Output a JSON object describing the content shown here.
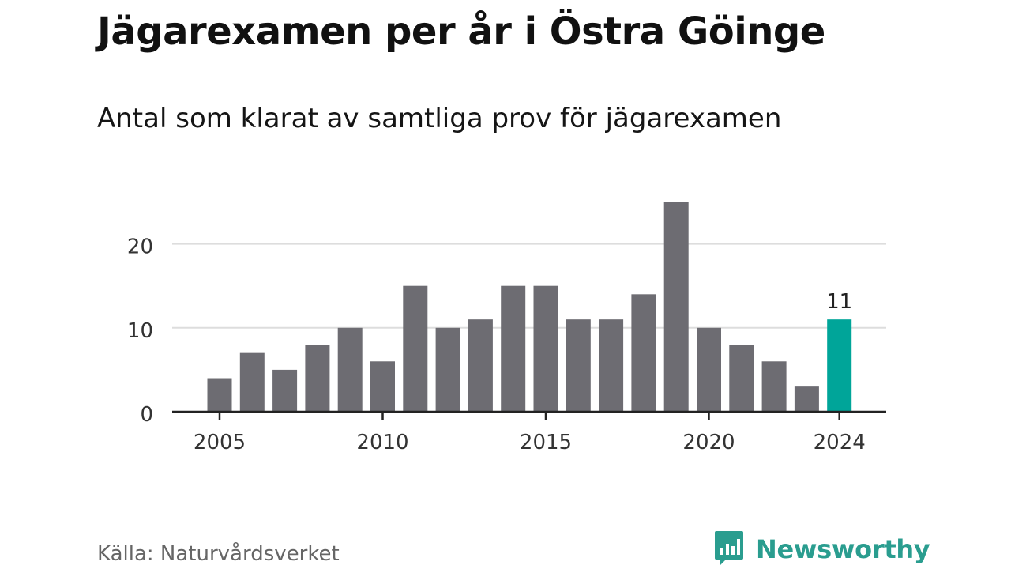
{
  "header": {
    "title": "Jägarexamen per år i Östra Göinge",
    "subtitle": "Antal som klarat av samtliga prov för jägarexamen"
  },
  "footer": {
    "source": "Källa: Naturvårdsverket",
    "brand": "Newsworthy",
    "brand_icon": "bar-chart-speech-bubble-icon"
  },
  "colors": {
    "bar": "#6d6c72",
    "highlight": "#00a599",
    "grid": "#dddddd",
    "axis": "#222222",
    "brand": "#2a9d8f"
  },
  "chart_data": {
    "type": "bar",
    "x": [
      2005,
      2006,
      2007,
      2008,
      2009,
      2010,
      2011,
      2012,
      2013,
      2014,
      2015,
      2016,
      2017,
      2018,
      2019,
      2020,
      2021,
      2022,
      2023,
      2024
    ],
    "values": [
      4,
      7,
      5,
      8,
      10,
      6,
      15,
      10,
      11,
      15,
      15,
      11,
      11,
      14,
      25,
      10,
      8,
      6,
      3,
      11
    ],
    "highlight": [
      2024
    ],
    "data_labels": [
      {
        "x": 2024,
        "label": "11"
      }
    ],
    "x_ticks": [
      "2005",
      "2010",
      "2015",
      "2020",
      "2024"
    ],
    "y_ticks": [
      "0",
      "10",
      "20"
    ],
    "ylim": [
      0,
      25
    ],
    "grid": true,
    "legend": false
  }
}
